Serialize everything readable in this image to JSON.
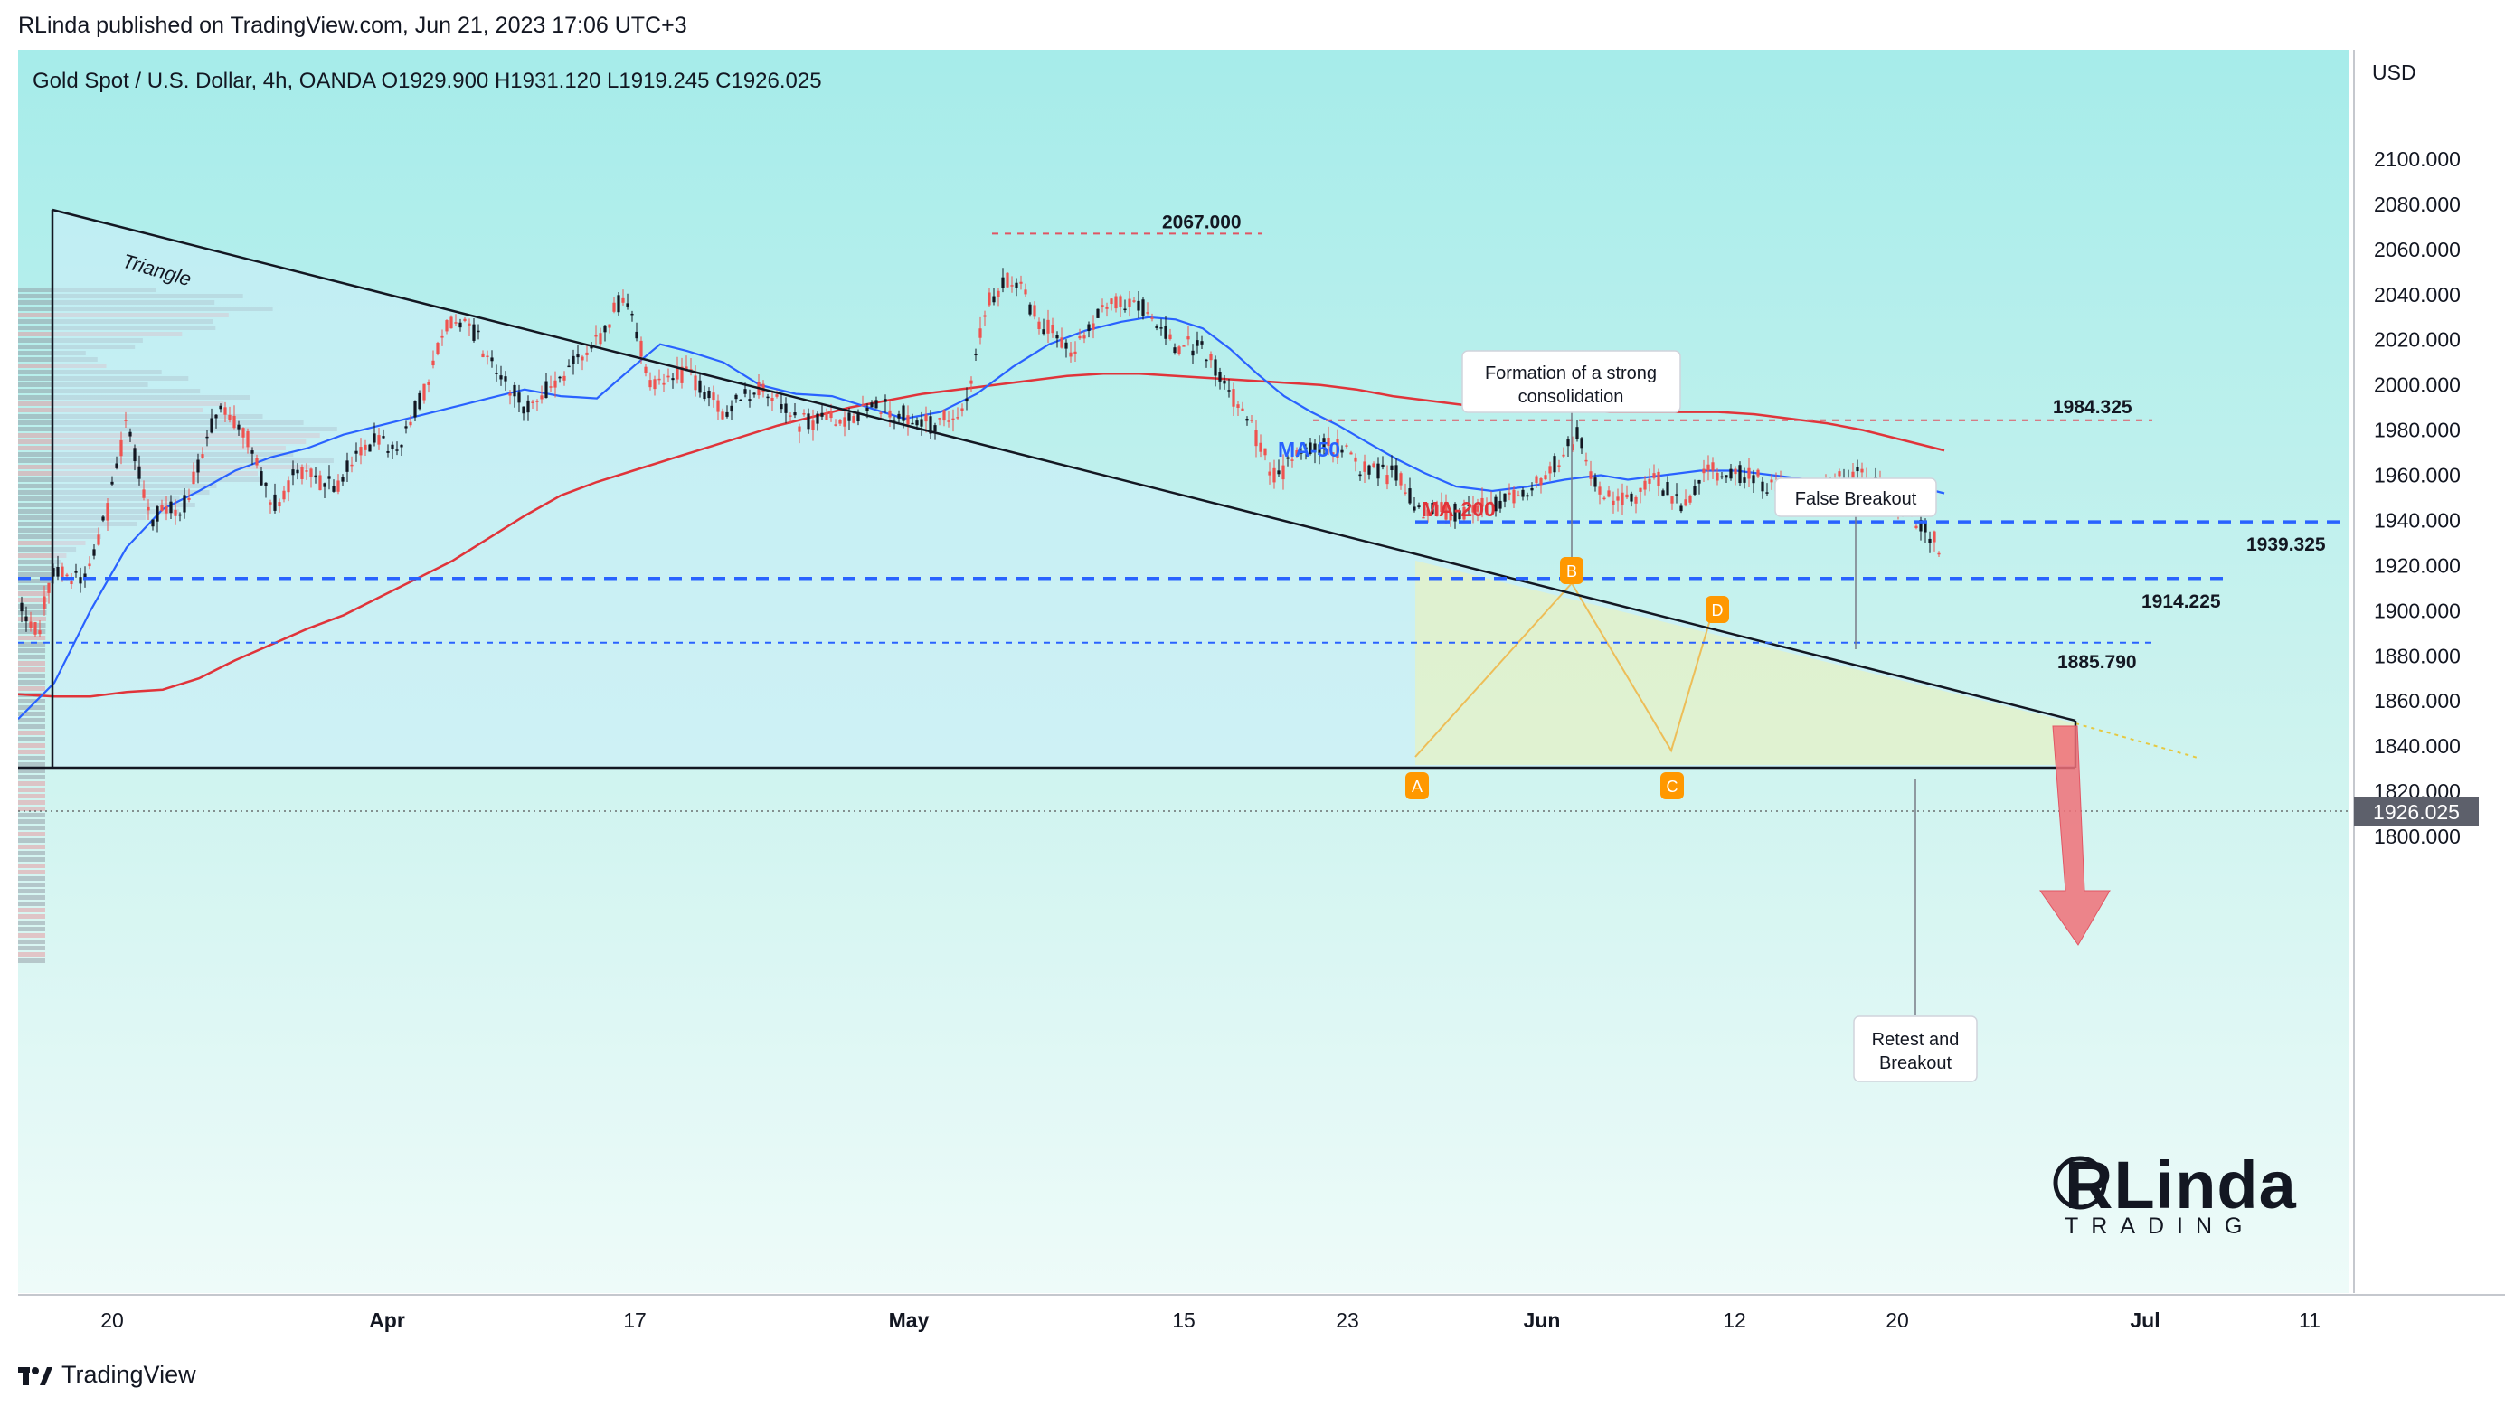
{
  "header": {
    "published": "RLinda published on TradingView.com, Jun 21, 2023 17:06 UTC+3"
  },
  "footer": {
    "brand": "TradingView"
  },
  "chart_data": {
    "type": "candlestick",
    "symbol_line": "Gold Spot / U.S. Dollar, 4h, OANDA  O1929.900  H1931.120  L1919.245  C1926.025",
    "currency": "USD",
    "last_price": "1926.025",
    "ylim": [
      1796,
      2116
    ],
    "y_ticks": [
      "2100.000",
      "2080.000",
      "2060.000",
      "2040.000",
      "2020.000",
      "2000.000",
      "1980.000",
      "1960.000",
      "1940.000",
      "1920.000",
      "1900.000",
      "1880.000",
      "1860.000",
      "1840.000",
      "1820.000",
      "1800.000"
    ],
    "x_ticks": [
      "20",
      "Apr",
      "17",
      "May",
      "15",
      "23",
      "Jun",
      "12",
      "20",
      "Jul",
      "11"
    ],
    "levels": [
      {
        "label": "2067.000",
        "value": 2067.0
      },
      {
        "label": "1984.325",
        "value": 1984.325
      },
      {
        "label": "1939.325",
        "value": 1939.325
      },
      {
        "label": "1914.225",
        "value": 1914.225
      },
      {
        "label": "1885.790",
        "value": 1885.79
      }
    ],
    "annotations": {
      "triangle": "Triangle",
      "ma50": "MA-50",
      "ma200": "MA-200",
      "consolidation": "Formation of a strong consolidation",
      "false_breakout": "False Breakout",
      "retest": "Retest and Breakout",
      "points": [
        "A",
        "B",
        "C",
        "D"
      ]
    },
    "logo": {
      "main": "RLinda",
      "sub": "TRADING"
    },
    "colors": {
      "up": "#ef5350",
      "down": "#131722",
      "ma50": "#2962ff",
      "ma200": "#e0343a",
      "level": "#2962ff",
      "resistance": "#e05563",
      "arrow": "#f07078",
      "marker": "#ff9800"
    }
  }
}
